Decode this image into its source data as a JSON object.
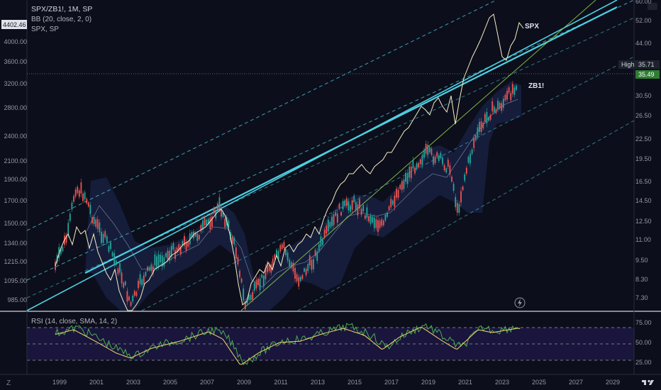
{
  "header": {
    "symbol_line": "SPX/ZB1!, 1M, SP",
    "indicator_bb": "BB (20, close, 2, 0)",
    "indicator_spx": "SPX, SP",
    "rsi_label": "RSI (14, close, SMA, 14, 2)",
    "current_left_price": "4402.46"
  },
  "left_axis": {
    "labels": [
      "4000.00",
      "3600.00",
      "3200.00",
      "2800.00",
      "2400.00",
      "2100.00",
      "1900.00",
      "1700.00",
      "1500.00",
      "1340.00",
      "1215.00",
      "1095.00",
      "985.00"
    ]
  },
  "right_axis": {
    "labels": [
      "60.00",
      "52.00",
      "44.00",
      "35.71",
      "35.49",
      "30.50",
      "26.50",
      "22.50",
      "19.50",
      "16.50",
      "14.50",
      "12.50",
      "11.00",
      "9.50",
      "8.30",
      "7.30"
    ],
    "high_tag": "High",
    "high_value": "35.71",
    "last_value": "35.49"
  },
  "rsi_axis": {
    "labels": [
      "75.00",
      "50.00",
      "25.00"
    ]
  },
  "x_axis": {
    "labels": [
      "1999",
      "2001",
      "2003",
      "2005",
      "2007",
      "2009",
      "2011",
      "2013",
      "2015",
      "2017",
      "2019",
      "2021",
      "2023",
      "2025",
      "2027",
      "2029"
    ]
  },
  "annotations": {
    "spx": "SPX",
    "zb1": "ZB1!"
  },
  "icons": {
    "bolt": "lightning-icon",
    "tv_logo": "tradingview-logo-icon"
  },
  "colors": {
    "background": "#0c0e1b",
    "up": "#26a69a",
    "down": "#ef5350",
    "spx_line": "#f5eec6",
    "channel": "#4dd0e1",
    "rsi": "#4caf50",
    "rsi_sma": "#f5d76e",
    "last_tag": "#2e7d32"
  }
}
